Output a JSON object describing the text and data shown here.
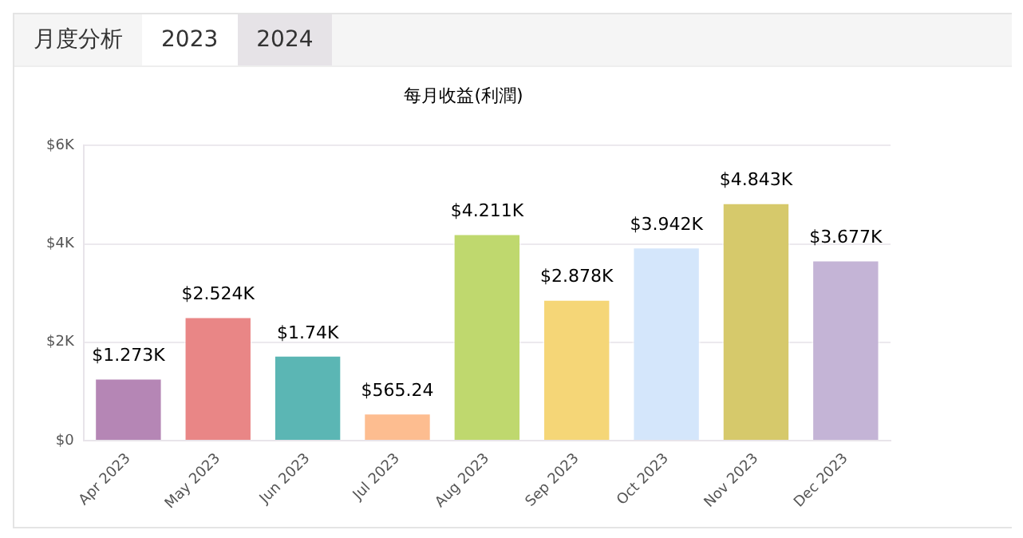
{
  "chart_data": {
    "type": "bar",
    "title": "每月收益(利潤)",
    "categories": [
      "Apr 2023",
      "May 2023",
      "Jun 2023",
      "Jul 2023",
      "Aug 2023",
      "Sep 2023",
      "Oct 2023",
      "Nov 2023",
      "Dec 2023"
    ],
    "values": [
      1273,
      2524,
      1740,
      565.24,
      4211,
      2878,
      3942,
      4843,
      3677
    ],
    "colors": [
      "#b586b5",
      "#e98686",
      "#5bb6b4",
      "#fdbd90",
      "#bfd86e",
      "#f5d677",
      "#d4e6fb",
      "#d6c96b",
      "#c4b4d6"
    ],
    "value_labels": [
      "$1.273K",
      "$2.524K",
      "$1.74K",
      "$565.24",
      "$4.211K",
      "$2.878K",
      "$3.942K",
      "$4.843K",
      "$3.677K"
    ],
    "ylim": [
      0,
      6000
    ],
    "yticks": [
      {
        "value": 0,
        "label": "$0"
      },
      {
        "value": 2000,
        "label": "$2K"
      },
      {
        "value": 4000,
        "label": "$4K"
      },
      {
        "value": 6000,
        "label": "$6K"
      }
    ],
    "grid": "y",
    "legend": false,
    "annotations": [
      "月度分析",
      "2023",
      "2024"
    ]
  }
}
